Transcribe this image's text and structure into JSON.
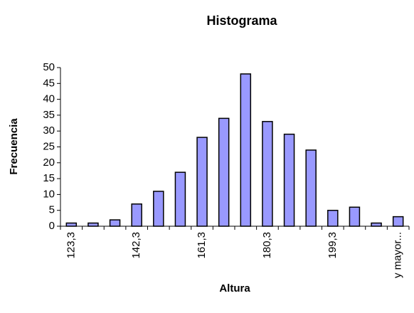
{
  "chart_data": {
    "type": "bar",
    "title": "Histograma",
    "x_label": "Altura",
    "y_label": "Frecuencia",
    "categories": [
      "123,3",
      null,
      null,
      "142,3",
      null,
      null,
      "161,3",
      null,
      null,
      "180,3",
      null,
      null,
      "199,3",
      null,
      null,
      "y mayor..."
    ],
    "values": [
      1,
      1,
      2,
      7,
      11,
      17,
      28,
      34,
      48,
      33,
      29,
      24,
      5,
      6,
      1,
      3
    ],
    "color": "#9999ff",
    "ylim": [
      0,
      50
    ],
    "yticks": [
      0,
      5,
      10,
      15,
      20,
      25,
      30,
      35,
      40,
      45,
      50
    ],
    "grid": false
  }
}
